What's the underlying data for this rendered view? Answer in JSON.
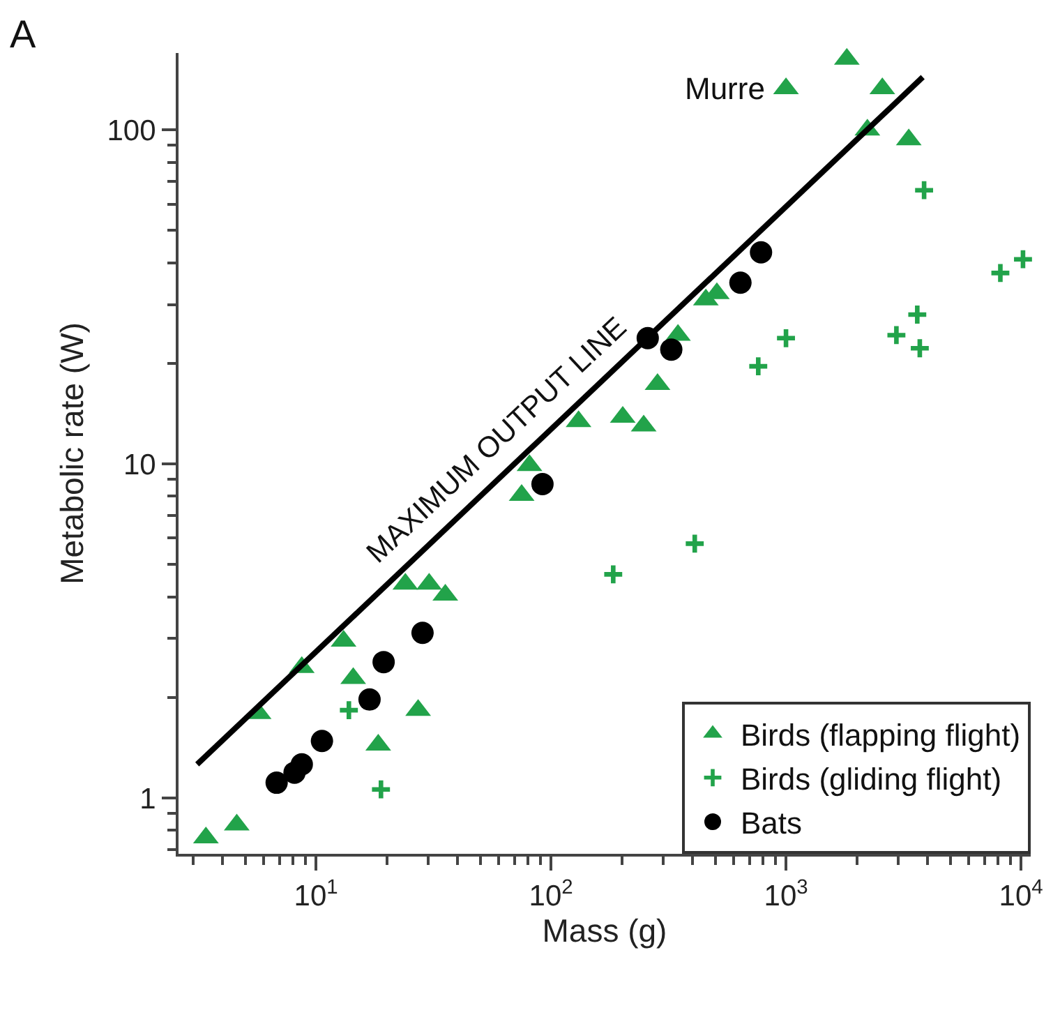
{
  "chart_data": {
    "type": "scatter",
    "xlabel": "Mass (g)",
    "ylabel": "Metabolic rate (W)",
    "log": "xy",
    "legend": "bottom right",
    "xlim": [
      2.6,
      11000
    ],
    "ylim": [
      0.68,
      170
    ],
    "xticks": [
      {
        "value": 10,
        "label": "10$^{1}$"
      },
      {
        "value": 100,
        "label": "10$^{2}$"
      },
      {
        "value": 1000,
        "label": "10$^{3}$"
      },
      {
        "value": 10000,
        "label": "10$^{4}$"
      }
    ],
    "yticks": [
      1,
      10,
      100
    ],
    "annotations": [
      "A",
      {
        "text": "Murre",
        "x": 1000,
        "y": 133
      },
      "MAXIMUM OUTPUT LINE"
    ],
    "series": [
      {
        "name": "Birds (flapping flight)",
        "marker": "triangle",
        "color": "#22a34a",
        "x": [
          3.4,
          4.6,
          5.7,
          8.7,
          13.1,
          14.4,
          18.4,
          27.2,
          24,
          30.3,
          35.5,
          75,
          81,
          131,
          202,
          248,
          284,
          347,
          456,
          508,
          1000,
          1815,
          2570,
          2220,
          3330
        ],
        "values": [
          0.76,
          0.83,
          1.79,
          2.46,
          2.95,
          2.28,
          1.44,
          1.83,
          4.37,
          4.37,
          4.05,
          8.06,
          9.9,
          13.4,
          13.8,
          13.0,
          17.3,
          24.3,
          31,
          32.4,
          133,
          163,
          133,
          100,
          93.5
        ]
      },
      {
        "name": "Birds (gliding flight)",
        "marker": "cross",
        "color": "#22a34a",
        "x": [
          13.8,
          18.9,
          184,
          409,
          762,
          1000,
          2950,
          3620,
          3710,
          3870,
          8170,
          10200
        ],
        "values": [
          1.83,
          1.06,
          4.67,
          5.77,
          19.6,
          23.8,
          24.3,
          28,
          22.2,
          66,
          37.3,
          41
        ]
      },
      {
        "name": "Bats",
        "marker": "circle",
        "color": "#000000",
        "x": [
          6.8,
          8.1,
          8.7,
          10.6,
          16.9,
          19.4,
          28.4,
          92,
          258,
          325,
          640,
          783
        ],
        "values": [
          1.11,
          1.19,
          1.26,
          1.48,
          1.97,
          2.55,
          3.12,
          8.7,
          23.8,
          22,
          34.9,
          43
        ]
      },
      {
        "type": "line",
        "marker": "none",
        "line_style": "solid",
        "color": "#000000",
        "x": [
          3.12,
          3820
        ],
        "values": [
          1.26,
          144
        ]
      }
    ]
  }
}
